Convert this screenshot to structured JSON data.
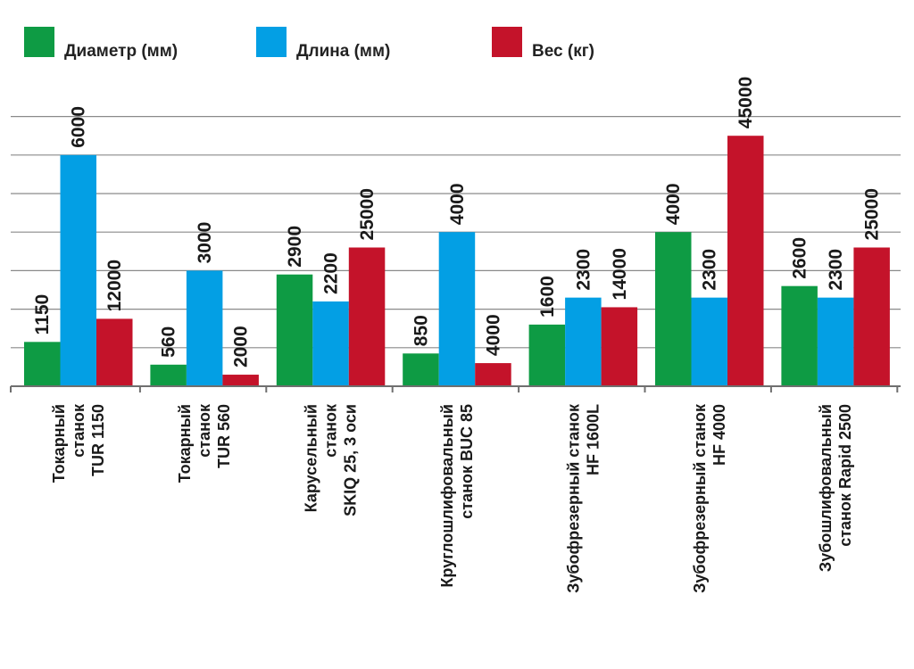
{
  "chart_data": {
    "type": "bar",
    "legend_position": "top",
    "grid": true,
    "series": [
      {
        "name": "Диаметр (мм)",
        "color": "#0e9b44",
        "values": [
          1150,
          560,
          2900,
          850,
          1600,
          4000,
          2600
        ],
        "labels": [
          "1150",
          "560",
          "2900",
          "850",
          "1600",
          "4000",
          "2600"
        ],
        "bar_levels": [
          1.15,
          0.56,
          2.9,
          0.85,
          1.6,
          4.0,
          2.6
        ]
      },
      {
        "name": "Длина (мм)",
        "color": "#039fe4",
        "values": [
          6000,
          3000,
          2200,
          4000,
          2300,
          2300,
          2300
        ],
        "labels": [
          "6000",
          "3000",
          "2200",
          "4000",
          "2300",
          "2300",
          "2300"
        ],
        "bar_levels": [
          6.0,
          3.0,
          2.2,
          4.0,
          2.3,
          2.3,
          2.3
        ]
      },
      {
        "name": "Вес (кг)",
        "color": "#c4132a",
        "values": [
          12000,
          2000,
          25000,
          4000,
          14000,
          45000,
          25000
        ],
        "labels": [
          "12000",
          "2000",
          "25000",
          "4000",
          "14000",
          "45000",
          "25000"
        ],
        "bar_levels": [
          1.75,
          0.3,
          3.6,
          0.6,
          2.05,
          6.5,
          3.6
        ]
      }
    ],
    "categories": [
      [
        "Токарный",
        "станок",
        "TUR 1150"
      ],
      [
        "Токарный",
        "станок",
        "TUR 560"
      ],
      [
        "Карусельный",
        "станок",
        "SKIQ 25, 3 оси"
      ],
      [
        "Круглошлифовальный",
        "станок BUC 85"
      ],
      [
        "Зубофрезерный станок",
        "HF 1600L"
      ],
      [
        "Зубофрезерный станок",
        "HF 4000"
      ],
      [
        "Зубошлифовальный",
        "станок Rapid 2500"
      ]
    ],
    "level_range": [
      0,
      7
    ]
  }
}
